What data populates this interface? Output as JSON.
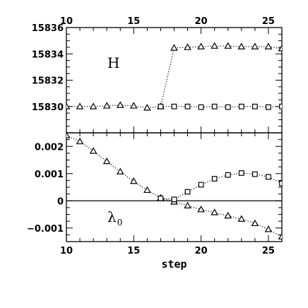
{
  "chart_data": [
    {
      "type": "line",
      "panel_label": "H",
      "xlim": [
        10,
        26
      ],
      "ylim": [
        15828,
        15836
      ],
      "x_ticks": [
        10,
        15,
        20,
        25
      ],
      "x_tick_labels": [
        "10",
        "15",
        "20",
        "25"
      ],
      "y_ticks": [
        15830,
        15832,
        15834,
        15836
      ],
      "y_tick_labels": [
        "15830",
        "15832",
        "15834",
        "15836"
      ],
      "grid": false,
      "line_style": "dotted",
      "series": [
        {
          "marker": "triangle",
          "x": [
            10,
            11,
            12,
            13,
            14,
            15,
            16,
            17,
            18,
            19,
            20,
            21,
            22,
            23,
            24,
            25,
            26
          ],
          "y": [
            15830.0,
            15830.0,
            15830.0,
            15830.05,
            15830.1,
            15830.05,
            15829.9,
            15830.0,
            15834.45,
            15834.5,
            15834.55,
            15834.6,
            15834.6,
            15834.55,
            15834.55,
            15834.55,
            15834.4
          ]
        },
        {
          "marker": "square",
          "x": [
            17,
            18,
            19,
            20,
            21,
            22,
            23,
            24,
            25,
            26
          ],
          "y": [
            15830.0,
            15830.0,
            15830.0,
            15829.95,
            15830.0,
            15829.95,
            15830.0,
            15830.0,
            15829.95,
            15830.0
          ]
        }
      ]
    },
    {
      "type": "line",
      "panel_label": "λ",
      "panel_label_sub": "0",
      "xlabel": "step",
      "xlim": [
        10,
        26
      ],
      "ylim": [
        -0.0015,
        0.0025
      ],
      "x_ticks": [
        10,
        15,
        20,
        25
      ],
      "x_tick_labels": [
        "10",
        "15",
        "20",
        "25"
      ],
      "y_ticks": [
        -0.001,
        0,
        0.001,
        0.002
      ],
      "y_tick_labels": [
        "−0.001",
        "0",
        "0.001",
        "0.002"
      ],
      "zero_line": true,
      "grid": false,
      "line_style": "dotted",
      "series": [
        {
          "marker": "triangle",
          "x": [
            10,
            11,
            12,
            13,
            14,
            15,
            16,
            17,
            18,
            19,
            20,
            21,
            22,
            23,
            24,
            25,
            26
          ],
          "y": [
            0.0024,
            0.00218,
            0.00183,
            0.00145,
            0.00107,
            0.00072,
            0.00039,
            0.00011,
            -4e-05,
            -0.00018,
            -0.00032,
            -0.00043,
            -0.00055,
            -0.00067,
            -0.00083,
            -0.00105,
            -0.00132
          ]
        },
        {
          "marker": "square",
          "x": [
            17,
            18,
            19,
            20,
            21,
            22,
            23,
            24,
            25,
            26
          ],
          "y": [
            9e-05,
            5e-05,
            0.00033,
            0.00059,
            0.00081,
            0.00095,
            0.00102,
            0.00098,
            0.00088,
            0.00064
          ]
        }
      ]
    }
  ]
}
